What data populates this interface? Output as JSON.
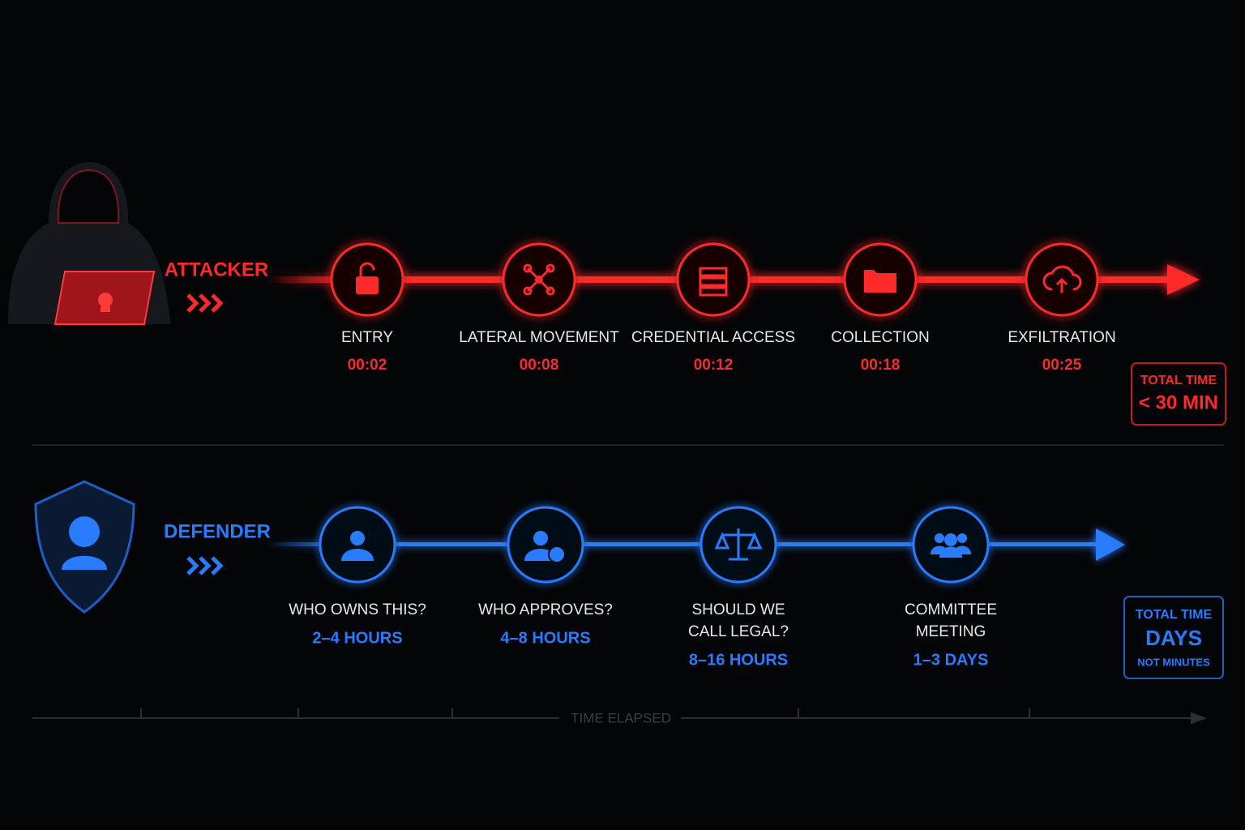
{
  "attacker": {
    "label": "ATTACKER",
    "stages": [
      {
        "label": "ENTRY",
        "time": "00:02"
      },
      {
        "label": "LATERAL MOVEMENT",
        "time": "00:08"
      },
      {
        "label": "CREDENTIAL ACCESS",
        "time": "00:12"
      },
      {
        "label": "COLLECTION",
        "time": "00:18"
      },
      {
        "label": "EXFILTRATION",
        "time": "00:25"
      }
    ],
    "total": {
      "title": "TOTAL TIME",
      "value": "< 30 MIN"
    }
  },
  "defender": {
    "label": "DEFENDER",
    "stages": [
      {
        "label": [
          "WHO OWNS THIS?"
        ],
        "time": "2–4 HOURS"
      },
      {
        "label": [
          "WHO APPROVES?"
        ],
        "time": "4–8 HOURS"
      },
      {
        "label": [
          "SHOULD WE",
          "CALL LEGAL?"
        ],
        "time": "8–16 HOURS"
      },
      {
        "label": [
          "COMMITTEE",
          "MEETING"
        ],
        "time": "1–3 DAYS"
      }
    ],
    "total": {
      "title": "TOTAL TIME",
      "value": "DAYS",
      "note": "NOT MINUTES"
    }
  },
  "axis": {
    "label": "TIME ELAPSED"
  }
}
